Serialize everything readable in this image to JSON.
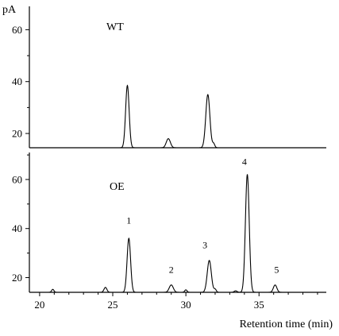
{
  "chart_data": {
    "type": "line",
    "y_unit_label": "pA",
    "xlabel": "Retention time (min)",
    "x_ticks": [
      20,
      25,
      30,
      35
    ],
    "xlim": [
      19.3,
      39.6
    ],
    "panels": [
      {
        "label": "WT",
        "ylim": [
          14.5,
          69
        ],
        "y_ticks": [
          20,
          40,
          60
        ],
        "baseline": 14.5,
        "peaks": [
          {
            "x": 26.0,
            "height": 38.5,
            "width": 0.12
          },
          {
            "x": 28.8,
            "height": 18.0,
            "width": 0.14
          },
          {
            "x": 31.5,
            "height": 35.0,
            "width": 0.14
          },
          {
            "x": 31.9,
            "height": 16.0,
            "width": 0.08
          }
        ],
        "peak_labels": []
      },
      {
        "label": "OE",
        "ylim": [
          14,
          71
        ],
        "y_ticks": [
          20,
          40,
          60
        ],
        "baseline": 14.0,
        "peaks": [
          {
            "x": 20.9,
            "height": 15.2,
            "width": 0.08
          },
          {
            "x": 24.5,
            "height": 16.0,
            "width": 0.1
          },
          {
            "x": 26.1,
            "height": 36.0,
            "width": 0.12
          },
          {
            "x": 29.0,
            "height": 17.0,
            "width": 0.14
          },
          {
            "x": 30.0,
            "height": 15.0,
            "width": 0.08
          },
          {
            "x": 31.6,
            "height": 27.0,
            "width": 0.14
          },
          {
            "x": 32.0,
            "height": 15.2,
            "width": 0.08
          },
          {
            "x": 33.4,
            "height": 14.6,
            "width": 0.1
          },
          {
            "x": 34.2,
            "height": 62.0,
            "width": 0.13
          },
          {
            "x": 36.1,
            "height": 17.0,
            "width": 0.12
          }
        ],
        "peak_labels": [
          {
            "text": "1",
            "x": 26.1,
            "y": 42
          },
          {
            "text": "2",
            "x": 29.0,
            "y": 22
          },
          {
            "text": "3",
            "x": 31.3,
            "y": 32
          },
          {
            "text": "4",
            "x": 34.0,
            "y": 66
          },
          {
            "text": "5",
            "x": 36.2,
            "y": 22
          }
        ]
      }
    ]
  }
}
